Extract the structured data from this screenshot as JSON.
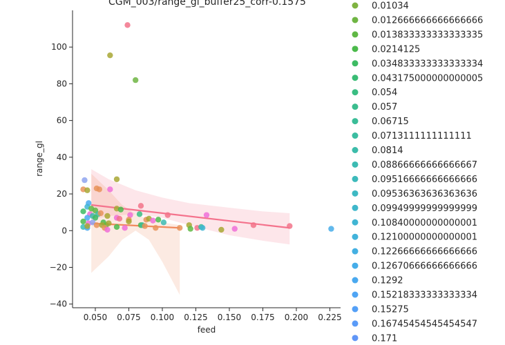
{
  "chart_data": {
    "type": "scatter",
    "title": "CGM_003/range_gl_buffer25_corr-0.1575",
    "xlabel": "feed",
    "ylabel": "range_gl",
    "xlim": [
      0.033,
      0.233
    ],
    "ylim": [
      -42,
      120
    ],
    "x_ticks": [
      0.05,
      0.075,
      0.1,
      0.125,
      0.15,
      0.175,
      0.2,
      0.225
    ],
    "x_tick_labels": [
      "0.050",
      "0.075",
      "0.100",
      "0.125",
      "0.150",
      "0.175",
      "0.200",
      "0.225"
    ],
    "y_ticks": [
      -40,
      -20,
      0,
      20,
      40,
      60,
      80,
      100
    ],
    "y_tick_labels": [
      "−40",
      "−20",
      "0",
      "20",
      "40",
      "60",
      "80",
      "100"
    ],
    "grid": false,
    "legend_position": "right",
    "legend": [
      {
        "label": "0.01034",
        "color": "#7fb341"
      },
      {
        "label": "0.012666666666666666",
        "color": "#6fb543"
      },
      {
        "label": "0.013833333333333335",
        "color": "#60b845"
      },
      {
        "label": "0.0214125",
        "color": "#4bba4b"
      },
      {
        "label": "0.034833333333333334",
        "color": "#3dbb63"
      },
      {
        "label": "0.043175000000000005",
        "color": "#39bc74"
      },
      {
        "label": "0.054",
        "color": "#3abd82"
      },
      {
        "label": "0.057",
        "color": "#3bbd8e"
      },
      {
        "label": "0.06715",
        "color": "#3bbd98"
      },
      {
        "label": "0.0713111111111111",
        "color": "#3bbda1"
      },
      {
        "label": "0.0814",
        "color": "#3cbcaa"
      },
      {
        "label": "0.08866666666666667",
        "color": "#3cbbb3"
      },
      {
        "label": "0.09516666666666666",
        "color": "#3dbabb"
      },
      {
        "label": "0.09536363636363636",
        "color": "#3eb9c3"
      },
      {
        "label": "0.09949999999999999",
        "color": "#3fb7cb"
      },
      {
        "label": "0.10840000000000001",
        "color": "#40b5d3"
      },
      {
        "label": "0.12100000000000001",
        "color": "#42b3db"
      },
      {
        "label": "0.12266666666666666",
        "color": "#44b0e2"
      },
      {
        "label": "0.12670666666666666",
        "color": "#46ade9"
      },
      {
        "label": "0.1292",
        "color": "#4aa9ef"
      },
      {
        "label": "0.15218333333333334",
        "color": "#4fa5f4"
      },
      {
        "label": "0.15275",
        "color": "#54a0f7"
      },
      {
        "label": "0.16745454545454547",
        "color": "#5a9bf8"
      },
      {
        "label": "0.171",
        "color": "#6096f7"
      }
    ],
    "points": [
      {
        "x": 0.061,
        "y": 95.5,
        "color": "#a8a734"
      },
      {
        "x": 0.08,
        "y": 82,
        "color": "#6fb543"
      },
      {
        "x": 0.074,
        "y": 112,
        "color": "#f2738a"
      },
      {
        "x": 0.066,
        "y": 28,
        "color": "#a8a734"
      },
      {
        "x": 0.042,
        "y": 27.5,
        "color": "#8fa4f0"
      },
      {
        "x": 0.041,
        "y": 22.5,
        "color": "#e8935a"
      },
      {
        "x": 0.044,
        "y": 22,
        "color": "#a8a734"
      },
      {
        "x": 0.051,
        "y": 23,
        "color": "#e8935a"
      },
      {
        "x": 0.053,
        "y": 22.5,
        "color": "#e8935a"
      },
      {
        "x": 0.061,
        "y": 22.5,
        "color": "#ee6fd8"
      },
      {
        "x": 0.045,
        "y": 15,
        "color": "#4aa9ef"
      },
      {
        "x": 0.044,
        "y": 13,
        "color": "#40b5d3"
      },
      {
        "x": 0.084,
        "y": 13.5,
        "color": "#f2738a"
      },
      {
        "x": 0.047,
        "y": 12,
        "color": "#60b845"
      },
      {
        "x": 0.066,
        "y": 12,
        "color": "#a8a734"
      },
      {
        "x": 0.069,
        "y": 11.5,
        "color": "#4bba4b"
      },
      {
        "x": 0.041,
        "y": 10.5,
        "color": "#3dbb63"
      },
      {
        "x": 0.05,
        "y": 11,
        "color": "#60b845"
      },
      {
        "x": 0.052,
        "y": 9,
        "color": "#3bbda1"
      },
      {
        "x": 0.054,
        "y": 9.5,
        "color": "#e8935a"
      },
      {
        "x": 0.046,
        "y": 9,
        "color": "#ee6fd8"
      },
      {
        "x": 0.048,
        "y": 8,
        "color": "#3cbcaa"
      },
      {
        "x": 0.059,
        "y": 8,
        "color": "#a8a734"
      },
      {
        "x": 0.076,
        "y": 8.5,
        "color": "#ee6fd8"
      },
      {
        "x": 0.083,
        "y": 9,
        "color": "#3abd82"
      },
      {
        "x": 0.104,
        "y": 8.5,
        "color": "#f2738a"
      },
      {
        "x": 0.133,
        "y": 8.5,
        "color": "#ee6fd8"
      },
      {
        "x": 0.044,
        "y": 7,
        "color": "#4aa9ef"
      },
      {
        "x": 0.05,
        "y": 7,
        "color": "#3dbb63"
      },
      {
        "x": 0.066,
        "y": 7,
        "color": "#ee6fd8"
      },
      {
        "x": 0.068,
        "y": 6.5,
        "color": "#f2738a"
      },
      {
        "x": 0.075,
        "y": 6,
        "color": "#e8935a"
      },
      {
        "x": 0.075,
        "y": 5,
        "color": "#a8a734"
      },
      {
        "x": 0.088,
        "y": 6,
        "color": "#e8935a"
      },
      {
        "x": 0.09,
        "y": 6.5,
        "color": "#a8a734"
      },
      {
        "x": 0.093,
        "y": 5.5,
        "color": "#ee6fd8"
      },
      {
        "x": 0.097,
        "y": 6,
        "color": "#4bba4b"
      },
      {
        "x": 0.041,
        "y": 5,
        "color": "#4bba4b"
      },
      {
        "x": 0.045,
        "y": 4,
        "color": "#ee6fd8"
      },
      {
        "x": 0.048,
        "y": 4.5,
        "color": "#8fa4f0"
      },
      {
        "x": 0.056,
        "y": 4.5,
        "color": "#4bba4b"
      },
      {
        "x": 0.058,
        "y": 3,
        "color": "#60b845"
      },
      {
        "x": 0.06,
        "y": 4,
        "color": "#a8a734"
      },
      {
        "x": 0.101,
        "y": 4.5,
        "color": "#3cbbb3"
      },
      {
        "x": 0.051,
        "y": 3,
        "color": "#e8935a"
      },
      {
        "x": 0.055,
        "y": 3,
        "color": "#a8a734"
      },
      {
        "x": 0.084,
        "y": 3,
        "color": "#4bba4b"
      },
      {
        "x": 0.085,
        "y": 3,
        "color": "#3bbd98"
      },
      {
        "x": 0.087,
        "y": 2.5,
        "color": "#e8935a"
      },
      {
        "x": 0.12,
        "y": 3,
        "color": "#a8a734"
      },
      {
        "x": 0.168,
        "y": 3,
        "color": "#f2738a"
      },
      {
        "x": 0.195,
        "y": 2.5,
        "color": "#f2738a"
      },
      {
        "x": 0.041,
        "y": 2,
        "color": "#3bbdb9"
      },
      {
        "x": 0.044,
        "y": 1.5,
        "color": "#4aa9ef"
      },
      {
        "x": 0.044,
        "y": 2.5,
        "color": "#a8a734"
      },
      {
        "x": 0.057,
        "y": 1.5,
        "color": "#e8935a"
      },
      {
        "x": 0.059,
        "y": 0.5,
        "color": "#ee6fd8"
      },
      {
        "x": 0.066,
        "y": 2,
        "color": "#4bba4b"
      },
      {
        "x": 0.072,
        "y": 1.5,
        "color": "#ee6fd8"
      },
      {
        "x": 0.095,
        "y": 1.5,
        "color": "#e8935a"
      },
      {
        "x": 0.113,
        "y": 1.5,
        "color": "#e8935a"
      },
      {
        "x": 0.121,
        "y": 1,
        "color": "#60b845"
      },
      {
        "x": 0.126,
        "y": 1.5,
        "color": "#f2738a"
      },
      {
        "x": 0.129,
        "y": 2,
        "color": "#3bbd98"
      },
      {
        "x": 0.13,
        "y": 1.5,
        "color": "#40b5d3"
      },
      {
        "x": 0.144,
        "y": 0.5,
        "color": "#a8a734"
      },
      {
        "x": 0.154,
        "y": 1,
        "color": "#ee6fd8"
      },
      {
        "x": 0.226,
        "y": 1,
        "color": "#46ade9"
      }
    ],
    "regressions": [
      {
        "color": "#f4728c",
        "x": [
          0.047,
          0.195
        ],
        "y": [
          14,
          1.5
        ],
        "band_upper": [
          [
            0.047,
            33.5
          ],
          [
            0.06,
            28
          ],
          [
            0.08,
            22
          ],
          [
            0.1,
            18
          ],
          [
            0.12,
            15
          ],
          [
            0.15,
            12.5
          ],
          [
            0.175,
            10.5
          ],
          [
            0.195,
            9.5
          ]
        ],
        "band_lower": [
          [
            0.047,
            6
          ],
          [
            0.06,
            8
          ],
          [
            0.08,
            9
          ],
          [
            0.1,
            7
          ],
          [
            0.12,
            3
          ],
          [
            0.15,
            -2.5
          ],
          [
            0.175,
            -5.5
          ],
          [
            0.195,
            -7.5
          ]
        ]
      },
      {
        "color": "#f08a5d",
        "x": [
          0.047,
          0.113
        ],
        "y": [
          4,
          1.5
        ],
        "band_upper": [
          [
            0.047,
            31
          ],
          [
            0.06,
            22
          ],
          [
            0.07,
            14
          ],
          [
            0.08,
            9
          ],
          [
            0.09,
            6
          ],
          [
            0.1,
            4.5
          ],
          [
            0.113,
            3
          ]
        ],
        "band_lower": [
          [
            0.047,
            -23
          ],
          [
            0.06,
            -14
          ],
          [
            0.07,
            -5
          ],
          [
            0.08,
            0
          ],
          [
            0.09,
            -5
          ],
          [
            0.1,
            -17
          ],
          [
            0.113,
            -35
          ]
        ]
      }
    ]
  }
}
